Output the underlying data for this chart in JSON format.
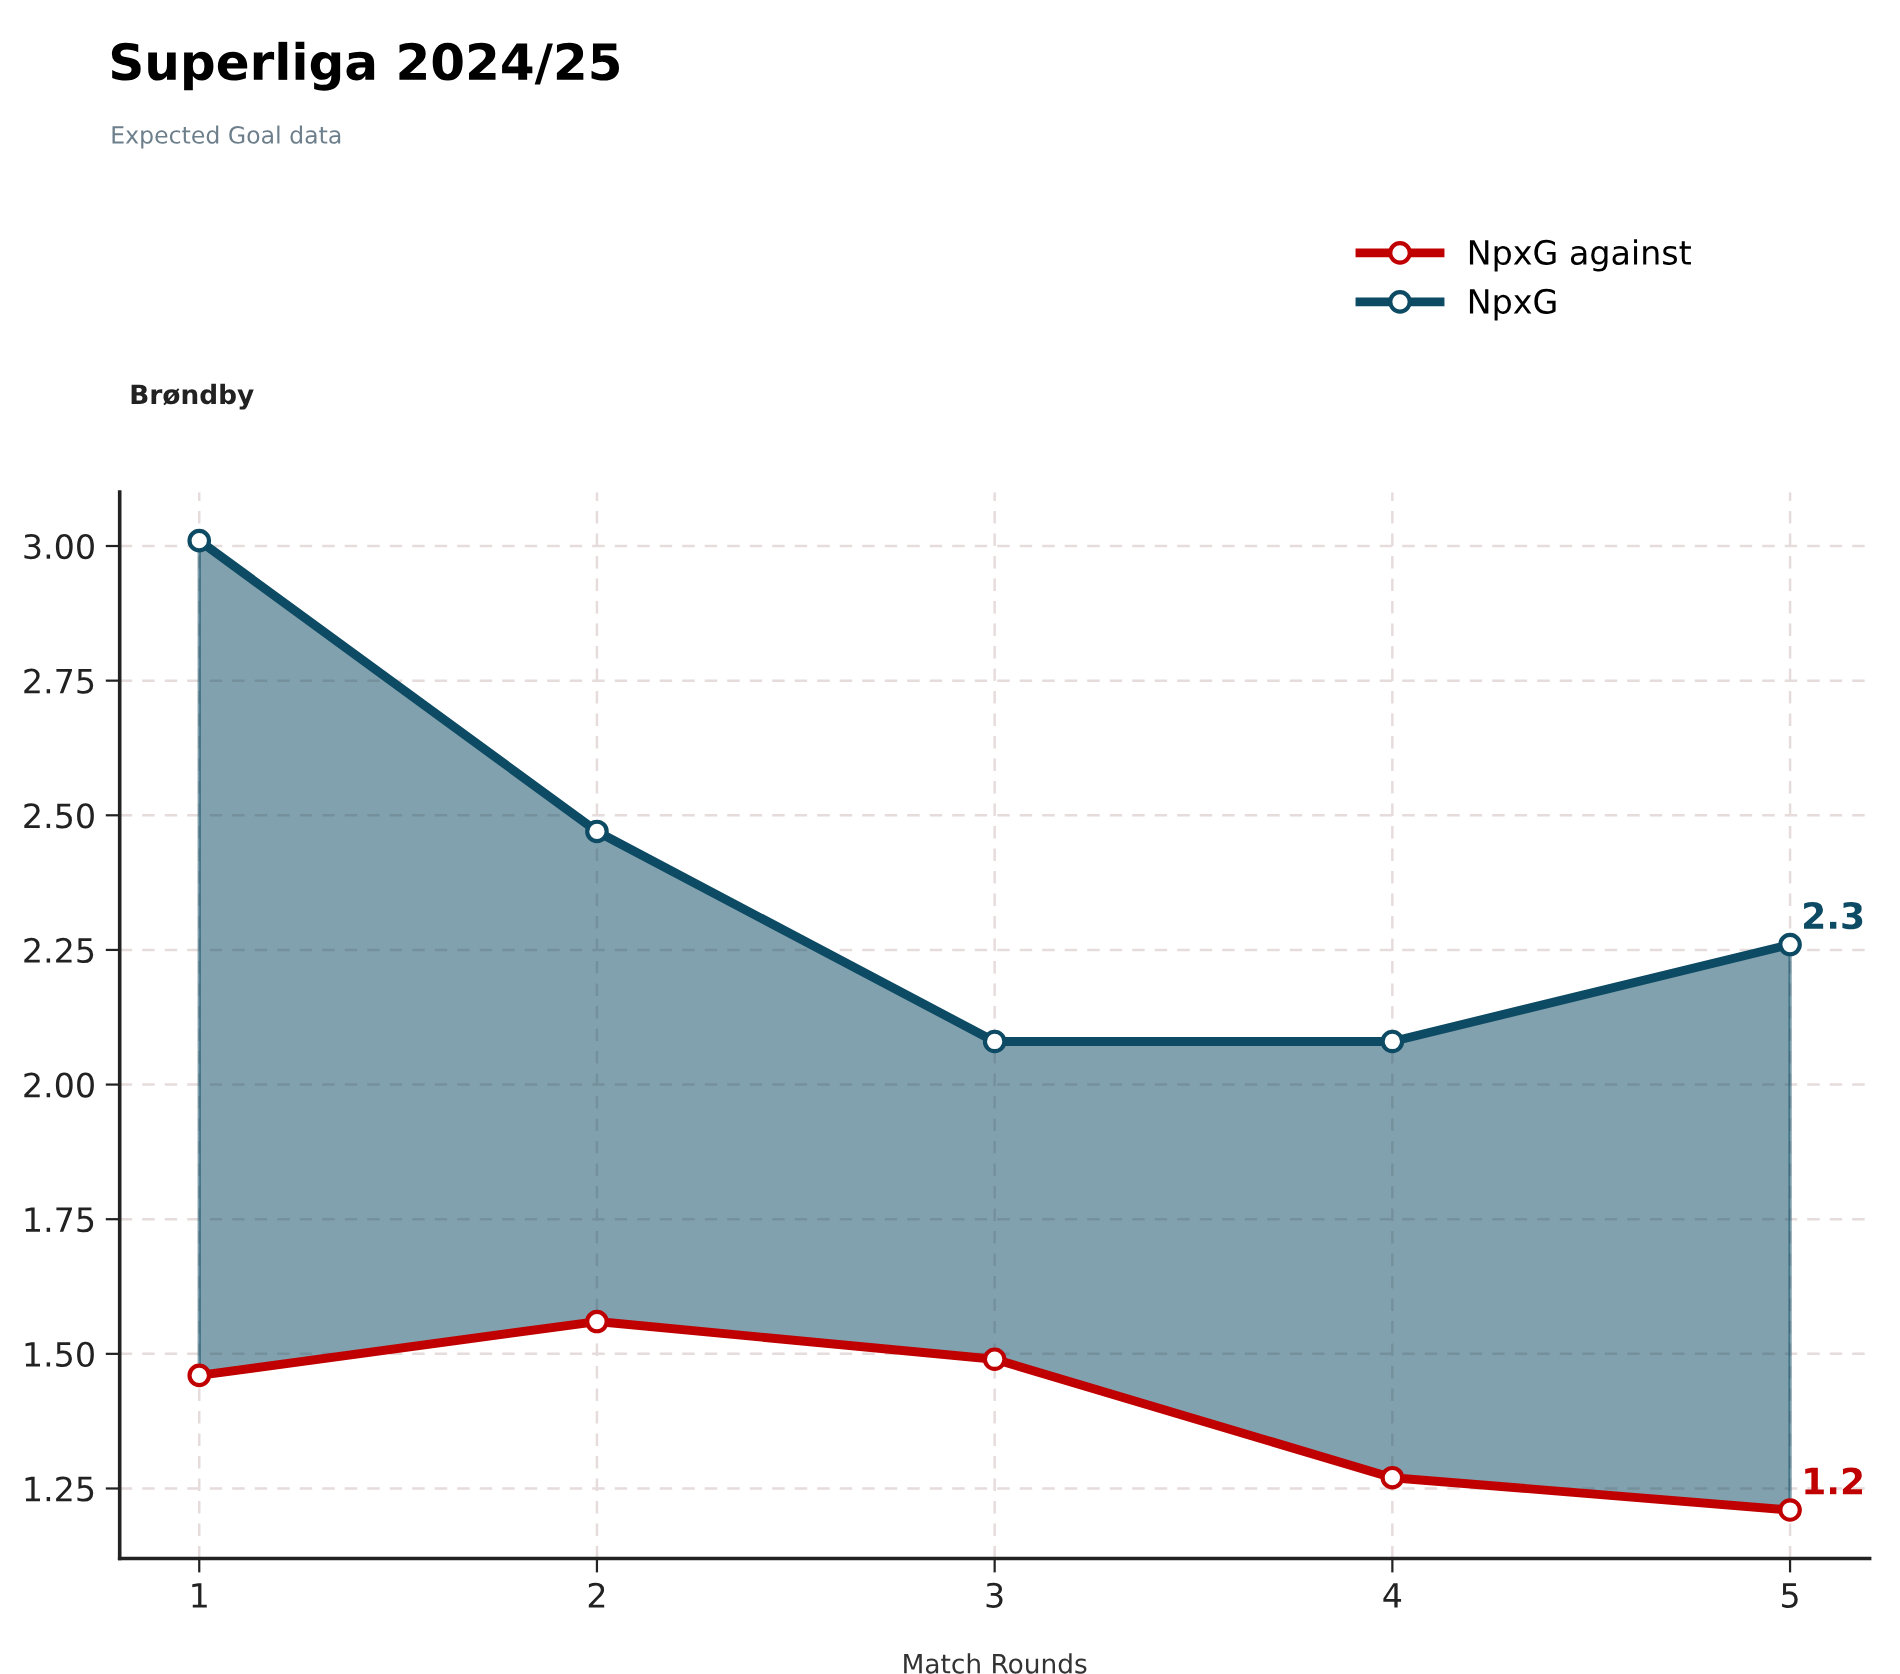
{
  "chart_data": {
    "type": "line",
    "title": "Superliga 2024/25",
    "subtitle": "Expected Goal data",
    "xlabel": "Match Rounds",
    "annotations": [
      "Brøndby"
    ],
    "x": [
      1,
      2,
      3,
      4,
      5
    ],
    "series": [
      {
        "name": "NpxG against",
        "color": "#c00000",
        "values": [
          1.46,
          1.56,
          1.49,
          1.27,
          1.21
        ],
        "value_labels": [
          null,
          null,
          null,
          null,
          "1.2"
        ]
      },
      {
        "name": "NpxG",
        "color": "#0d4a63",
        "values": [
          3.01,
          2.47,
          2.08,
          2.08,
          2.26
        ],
        "value_labels": [
          null,
          null,
          null,
          null,
          "2.3"
        ],
        "lower": [
          1.46,
          1.56,
          1.49,
          1.27,
          1.21
        ],
        "upper": [
          3.01,
          2.47,
          2.08,
          2.08,
          2.26
        ]
      }
    ],
    "xlim": [
      0.8,
      5.2
    ],
    "xticks": [
      1,
      2,
      3,
      4,
      5
    ],
    "ylim": [
      1.12,
      3.1
    ],
    "yticks": [
      1.25,
      {
        "value": 1.5,
        "label": "1.50"
      },
      1.75,
      {
        "value": 2.0,
        "label": "2.00"
      },
      2.25,
      {
        "value": 2.5,
        "label": "2.50"
      },
      2.75,
      {
        "value": 3.0,
        "label": "3.00"
      }
    ],
    "grid": true,
    "legend": "top right",
    "marker": "circle",
    "line_style": "solid"
  }
}
